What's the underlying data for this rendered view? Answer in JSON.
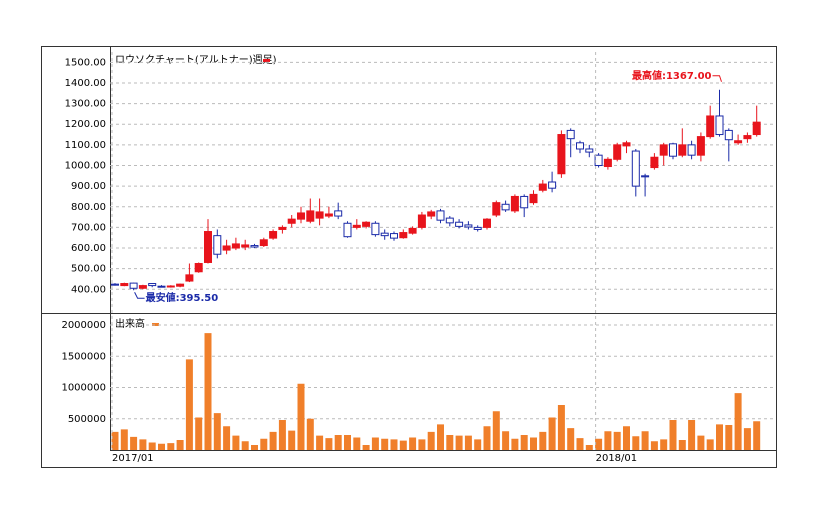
{
  "chart_data": [
    {
      "type": "candlestick",
      "title": "ロウソクチャート(アルトナー)週足)",
      "up_color": "#e8141c",
      "down_color": "#1a2aa8",
      "annotations": [
        {
          "text": "最高値:1367.00",
          "index": 65
        },
        {
          "text": "最安値:395.50",
          "index": 2
        }
      ],
      "open": [
        425,
        418,
        430,
        405,
        428,
        415,
        412,
        415,
        440,
        485,
        530,
        660,
        590,
        600,
        605,
        612,
        612,
        648,
        690,
        720,
        740,
        730,
        745,
        755,
        780,
        720,
        700,
        705,
        720,
        672,
        670,
        650,
        672,
        700,
        755,
        780,
        745,
        725,
        712,
        700,
        700,
        760,
        812,
        780,
        850,
        820,
        880,
        920,
        960,
        1170,
        1110,
        1080,
        1050,
        995,
        1030,
        1095,
        1070,
        950,
        990,
        1050,
        1105,
        1050,
        1100,
        1050,
        1140,
        1240,
        1170,
        1110,
        1130,
        1150
      ],
      "high": [
        430,
        432,
        432,
        422,
        430,
        420,
        420,
        428,
        525,
        530,
        740,
        690,
        640,
        650,
        640,
        620,
        650,
        690,
        710,
        760,
        800,
        840,
        840,
        800,
        820,
        730,
        740,
        730,
        730,
        690,
        680,
        690,
        705,
        775,
        785,
        790,
        755,
        740,
        730,
        710,
        745,
        830,
        830,
        860,
        860,
        880,
        930,
        970,
        1170,
        1180,
        1120,
        1100,
        1060,
        1040,
        1110,
        1120,
        1080,
        960,
        1060,
        1110,
        1110,
        1180,
        1120,
        1160,
        1290,
        1367,
        1180,
        1150,
        1160,
        1290
      ],
      "low": [
        418,
        415,
        395.5,
        400,
        410,
        410,
        408,
        410,
        435,
        480,
        525,
        550,
        570,
        590,
        590,
        600,
        605,
        640,
        670,
        700,
        720,
        720,
        710,
        745,
        740,
        650,
        690,
        695,
        655,
        640,
        635,
        645,
        665,
        690,
        740,
        720,
        705,
        695,
        690,
        680,
        690,
        750,
        775,
        770,
        750,
        810,
        870,
        870,
        940,
        1040,
        1060,
        1040,
        990,
        980,
        1020,
        1060,
        850,
        850,
        980,
        1000,
        1030,
        1040,
        1030,
        1020,
        1130,
        1140,
        1020,
        1100,
        1110,
        1140
      ],
      "close": [
        420,
        428,
        405,
        418,
        418,
        414,
        416,
        425,
        470,
        525,
        680,
        570,
        610,
        620,
        615,
        605,
        640,
        680,
        700,
        740,
        770,
        780,
        775,
        765,
        755,
        655,
        710,
        725,
        665,
        660,
        648,
        675,
        695,
        760,
        775,
        735,
        722,
        705,
        702,
        690,
        740,
        820,
        785,
        850,
        795,
        860,
        910,
        890,
        1150,
        1130,
        1080,
        1065,
        1000,
        1030,
        1100,
        1110,
        900,
        945,
        1040,
        1100,
        1045,
        1100,
        1050,
        1140,
        1240,
        1150,
        1125,
        1120,
        1145,
        1210
      ],
      "ylim": [
        290,
        1550
      ],
      "yticks": [
        {
          "value": 400,
          "label": "400.00"
        },
        {
          "value": 500,
          "label": "500.00"
        },
        {
          "value": 600,
          "label": "600.00"
        },
        {
          "value": 700,
          "label": "700.00"
        },
        {
          "value": 800,
          "label": "800.00"
        },
        {
          "value": 900,
          "label": "900.00"
        },
        {
          "value": 1000,
          "label": "1000.00"
        },
        {
          "value": 1100,
          "label": "1100.00"
        },
        {
          "value": 1200,
          "label": "1200.00"
        },
        {
          "value": 1300,
          "label": "1300.00"
        },
        {
          "value": 1400,
          "label": "1400.00"
        },
        {
          "value": 1500,
          "label": "1500.00"
        }
      ],
      "grid": true
    },
    {
      "type": "bar",
      "title": "出来高",
      "color": "#f07f2a",
      "categories": [
        "2017/01",
        null,
        null,
        null,
        null,
        null,
        null,
        null,
        null,
        null,
        null,
        null,
        null,
        null,
        null,
        null,
        null,
        null,
        null,
        null,
        null,
        null,
        null,
        null,
        null,
        null,
        null,
        null,
        null,
        null,
        null,
        null,
        null,
        null,
        null,
        null,
        null,
        null,
        null,
        null,
        null,
        null,
        null,
        null,
        null,
        null,
        null,
        null,
        null,
        null,
        null,
        null,
        "2018/01",
        null,
        null,
        null,
        null,
        null,
        null,
        null,
        null,
        null,
        null,
        null,
        null,
        null,
        null,
        null,
        null,
        null
      ],
      "values": [
        290000,
        330000,
        210000,
        170000,
        120000,
        100000,
        110000,
        160000,
        1450000,
        520000,
        1870000,
        590000,
        380000,
        230000,
        140000,
        80000,
        180000,
        290000,
        480000,
        310000,
        1060000,
        500000,
        230000,
        190000,
        240000,
        240000,
        200000,
        80000,
        200000,
        180000,
        170000,
        150000,
        200000,
        170000,
        290000,
        410000,
        240000,
        230000,
        230000,
        170000,
        380000,
        620000,
        300000,
        180000,
        240000,
        200000,
        290000,
        520000,
        720000,
        350000,
        190000,
        80000,
        180000,
        300000,
        290000,
        380000,
        220000,
        300000,
        140000,
        170000,
        480000,
        160000,
        480000,
        230000,
        170000,
        410000,
        400000,
        910000,
        350000,
        460000
      ],
      "ylim": [
        0,
        2160000
      ],
      "yticks": [
        500000,
        1000000,
        1500000,
        2000000
      ],
      "grid": true
    }
  ]
}
